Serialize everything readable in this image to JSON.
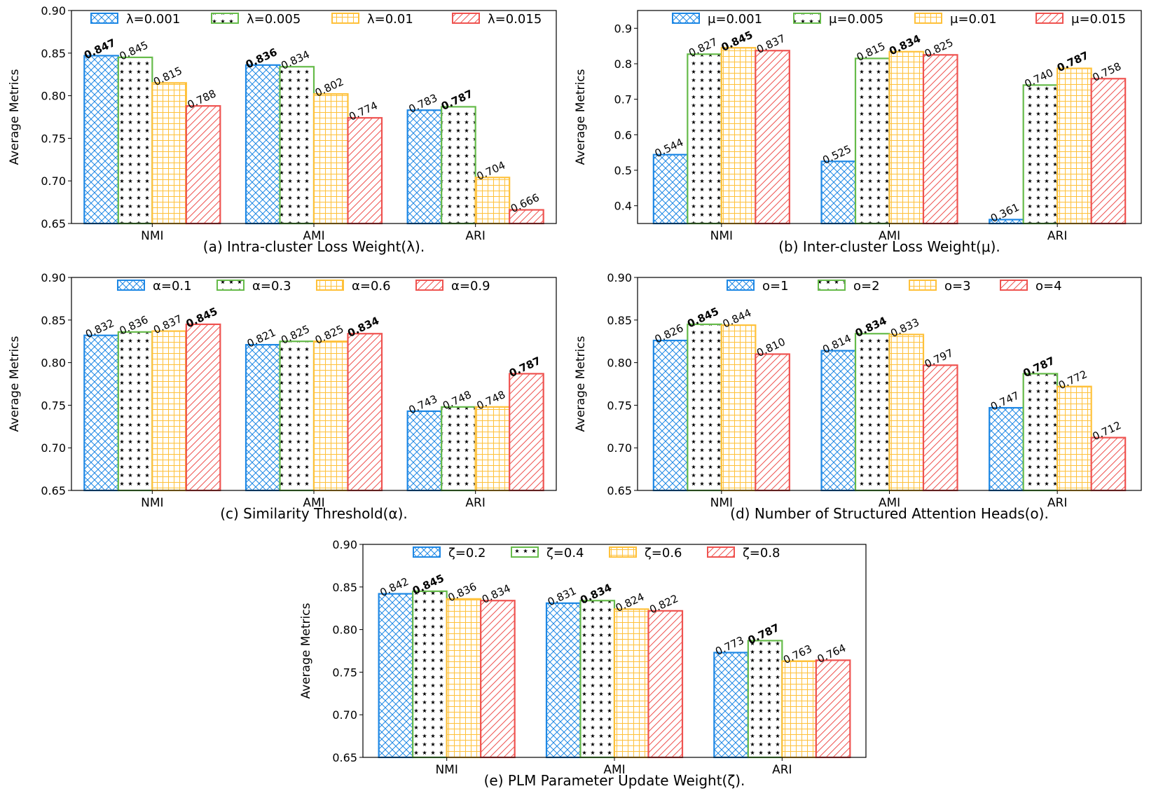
{
  "colors": {
    "s0": "#1e88e5",
    "s1": "#66bb4a",
    "s2": "#ffc13a",
    "s3": "#ef5350",
    "star": "#000000"
  },
  "chart_data": [
    {
      "type": "bar",
      "caption": "(a) Intra-cluster Loss Weight(λ).",
      "ylabel": "Average Metrics",
      "categories": [
        "NMI",
        "AMI",
        "ARI"
      ],
      "ylim": [
        0.65,
        0.9
      ],
      "yticks": [
        "0.65",
        "0.70",
        "0.75",
        "0.80",
        "0.85",
        "0.90"
      ],
      "legend_position": "top",
      "series": [
        {
          "name": "λ=0.001",
          "values": [
            0.847,
            0.836,
            0.783
          ],
          "labels": [
            "0.847",
            "0.836",
            "0.783"
          ],
          "bold": [
            true,
            true,
            false
          ]
        },
        {
          "name": "λ=0.005",
          "values": [
            0.845,
            0.834,
            0.787
          ],
          "labels": [
            "0.845",
            "0.834",
            "0.787"
          ],
          "bold": [
            false,
            false,
            true
          ]
        },
        {
          "name": "λ=0.01",
          "values": [
            0.815,
            0.802,
            0.704
          ],
          "labels": [
            "0.815",
            "0.802",
            "0.704"
          ],
          "bold": [
            false,
            false,
            false
          ]
        },
        {
          "name": "λ=0.015",
          "values": [
            0.788,
            0.774,
            0.666
          ],
          "labels": [
            "0.788",
            "0.774",
            "0.666"
          ],
          "bold": [
            false,
            false,
            false
          ]
        }
      ]
    },
    {
      "type": "bar",
      "caption": "(b) Inter-cluster Loss Weight(μ).",
      "ylabel": "Average Metrics",
      "categories": [
        "NMI",
        "AMI",
        "ARI"
      ],
      "ylim": [
        0.35,
        0.95
      ],
      "yticks": [
        "0.4",
        "0.5",
        "0.6",
        "0.7",
        "0.8",
        "0.9"
      ],
      "legend_position": "top",
      "series": [
        {
          "name": "μ=0.001",
          "values": [
            0.544,
            0.525,
            0.361
          ],
          "labels": [
            "0.544",
            "0.525",
            "0.361"
          ],
          "bold": [
            false,
            false,
            false
          ]
        },
        {
          "name": "μ=0.005",
          "values": [
            0.827,
            0.815,
            0.74
          ],
          "labels": [
            "0.827",
            "0.815",
            "0.740"
          ],
          "bold": [
            false,
            false,
            false
          ]
        },
        {
          "name": "μ=0.01",
          "values": [
            0.845,
            0.834,
            0.787
          ],
          "labels": [
            "0.845",
            "0.834",
            "0.787"
          ],
          "bold": [
            true,
            true,
            true
          ]
        },
        {
          "name": "μ=0.015",
          "values": [
            0.837,
            0.825,
            0.758
          ],
          "labels": [
            "0.837",
            "0.825",
            "0.758"
          ],
          "bold": [
            false,
            false,
            false
          ]
        }
      ]
    },
    {
      "type": "bar",
      "caption": "(c) Similarity Threshold(α).",
      "ylabel": "Average Metrics",
      "categories": [
        "NMI",
        "AMI",
        "ARI"
      ],
      "ylim": [
        0.65,
        0.9
      ],
      "yticks": [
        "0.65",
        "0.70",
        "0.75",
        "0.80",
        "0.85",
        "0.90"
      ],
      "legend_position": "top",
      "series": [
        {
          "name": "α=0.1",
          "values": [
            0.832,
            0.821,
            0.743
          ],
          "labels": [
            "0.832",
            "0.821",
            "0.743"
          ],
          "bold": [
            false,
            false,
            false
          ]
        },
        {
          "name": "α=0.3",
          "values": [
            0.836,
            0.825,
            0.748
          ],
          "labels": [
            "0.836",
            "0.825",
            "0.748"
          ],
          "bold": [
            false,
            false,
            false
          ]
        },
        {
          "name": "α=0.6",
          "values": [
            0.837,
            0.825,
            0.748
          ],
          "labels": [
            "0.837",
            "0.825",
            "0.748"
          ],
          "bold": [
            false,
            false,
            false
          ]
        },
        {
          "name": "α=0.9",
          "values": [
            0.845,
            0.834,
            0.787
          ],
          "labels": [
            "0.845",
            "0.834",
            "0.787"
          ],
          "bold": [
            true,
            true,
            true
          ]
        }
      ]
    },
    {
      "type": "bar",
      "caption": "(d) Number of Structured Attention Heads(o).",
      "ylabel": "Average Metrics",
      "categories": [
        "NMI",
        "AMI",
        "ARI"
      ],
      "ylim": [
        0.65,
        0.9
      ],
      "yticks": [
        "0.65",
        "0.70",
        "0.75",
        "0.80",
        "0.85",
        "0.90"
      ],
      "legend_position": "top",
      "series": [
        {
          "name": "o=1",
          "values": [
            0.826,
            0.814,
            0.747
          ],
          "labels": [
            "0.826",
            "0.814",
            "0.747"
          ],
          "bold": [
            false,
            false,
            false
          ]
        },
        {
          "name": "o=2",
          "values": [
            0.845,
            0.834,
            0.787
          ],
          "labels": [
            "0.845",
            "0.834",
            "0.787"
          ],
          "bold": [
            true,
            true,
            true
          ]
        },
        {
          "name": "o=3",
          "values": [
            0.844,
            0.833,
            0.772
          ],
          "labels": [
            "0.844",
            "0.833",
            "0.772"
          ],
          "bold": [
            false,
            false,
            false
          ]
        },
        {
          "name": "o=4",
          "values": [
            0.81,
            0.797,
            0.712
          ],
          "labels": [
            "0.810",
            "0.797",
            "0.712"
          ],
          "bold": [
            false,
            false,
            false
          ]
        }
      ]
    },
    {
      "type": "bar",
      "caption": "(e) PLM Parameter Update Weight(ζ).",
      "ylabel": "Average Metrics",
      "categories": [
        "NMI",
        "AMI",
        "ARI"
      ],
      "ylim": [
        0.65,
        0.9
      ],
      "yticks": [
        "0.65",
        "0.70",
        "0.75",
        "0.80",
        "0.85",
        "0.90"
      ],
      "legend_position": "top",
      "series": [
        {
          "name": "ζ=0.2",
          "values": [
            0.842,
            0.831,
            0.773
          ],
          "labels": [
            "0.842",
            "0.831",
            "0.773"
          ],
          "bold": [
            false,
            false,
            false
          ]
        },
        {
          "name": "ζ=0.4",
          "values": [
            0.845,
            0.834,
            0.787
          ],
          "labels": [
            "0.845",
            "0.834",
            "0.787"
          ],
          "bold": [
            true,
            true,
            true
          ]
        },
        {
          "name": "ζ=0.6",
          "values": [
            0.836,
            0.824,
            0.763
          ],
          "labels": [
            "0.836",
            "0.824",
            "0.763"
          ],
          "bold": [
            false,
            false,
            false
          ]
        },
        {
          "name": "ζ=0.8",
          "values": [
            0.834,
            0.822,
            0.764
          ],
          "labels": [
            "0.834",
            "0.822",
            "0.764"
          ],
          "bold": [
            false,
            false,
            false
          ]
        }
      ]
    }
  ]
}
